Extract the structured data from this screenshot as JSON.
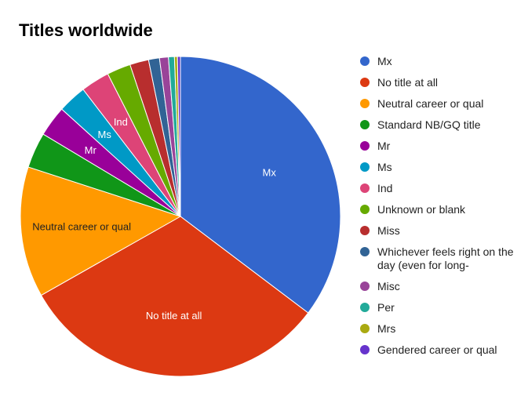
{
  "chart_data": {
    "type": "pie",
    "title": "Titles worldwide",
    "legend_position": "right",
    "slices": [
      {
        "label": "Mx",
        "value": 35.3,
        "color": "#3366cc"
      },
      {
        "label": "No title at all",
        "value": 31.5,
        "color": "#dc3912"
      },
      {
        "label": "Neutral career or qual",
        "value": 13.2,
        "color": "#ff9900"
      },
      {
        "label": "Standard NB/GQ title",
        "value": 3.6,
        "color": "#109618"
      },
      {
        "label": "Mr",
        "value": 3.1,
        "color": "#990099"
      },
      {
        "label": "Ms",
        "value": 2.9,
        "color": "#0099c6"
      },
      {
        "label": "Ind",
        "value": 2.9,
        "color": "#dd4477"
      },
      {
        "label": "Unknown or blank",
        "value": 2.4,
        "color": "#66aa00"
      },
      {
        "label": "Miss",
        "value": 1.9,
        "color": "#b82e2e"
      },
      {
        "label": "Whichever feels right on the day (even for long-",
        "value": 1.1,
        "color": "#316395"
      },
      {
        "label": "Misc",
        "value": 0.9,
        "color": "#994499"
      },
      {
        "label": "Per",
        "value": 0.6,
        "color": "#22aa99"
      },
      {
        "label": "Mrs",
        "value": 0.3,
        "color": "#aaaa11"
      },
      {
        "label": "Gendered career or qual",
        "value": 0.3,
        "color": "#6633cc"
      }
    ],
    "slice_labels": [
      "Mx",
      "No title at all",
      "Neutral career or qual",
      "Mr",
      "Ms",
      "Ind"
    ]
  }
}
